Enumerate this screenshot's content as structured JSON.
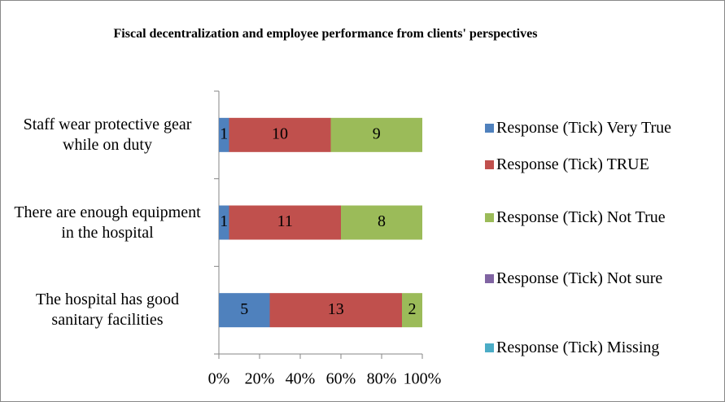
{
  "chart_data": {
    "type": "stacked_percent_barh",
    "title": "Fiscal decentralization and employee performance from clients' perspectives",
    "categories": [
      "Staff wear protective gear  while on duty",
      "There are enough equipment in the hospital",
      "The hospital has good sanitary facilities"
    ],
    "series": [
      {
        "name": "Response (Tick) Very True",
        "color": "#4f81bd",
        "values": [
          1,
          1,
          5
        ]
      },
      {
        "name": "Response (Tick) TRUE",
        "color": "#c0504d",
        "values": [
          10,
          11,
          13
        ]
      },
      {
        "name": "Response (Tick) Not True",
        "color": "#9bbb59",
        "values": [
          9,
          8,
          2
        ]
      },
      {
        "name": "Response (Tick) Not sure",
        "color": "#8064a2",
        "values": [
          0,
          0,
          0
        ]
      },
      {
        "name": "Response (Tick) Missing",
        "color": "#4bacc6",
        "values": [
          0,
          0,
          0
        ]
      }
    ],
    "xlim": [
      0,
      100
    ],
    "xticks": [
      {
        "value": 0,
        "label": "0%"
      },
      {
        "value": 20,
        "label": "20%"
      },
      {
        "value": 40,
        "label": "40%"
      },
      {
        "value": 60,
        "label": "60%"
      },
      {
        "value": 80,
        "label": "80%"
      },
      {
        "value": 100,
        "label": "100%"
      }
    ],
    "legend": "right"
  }
}
